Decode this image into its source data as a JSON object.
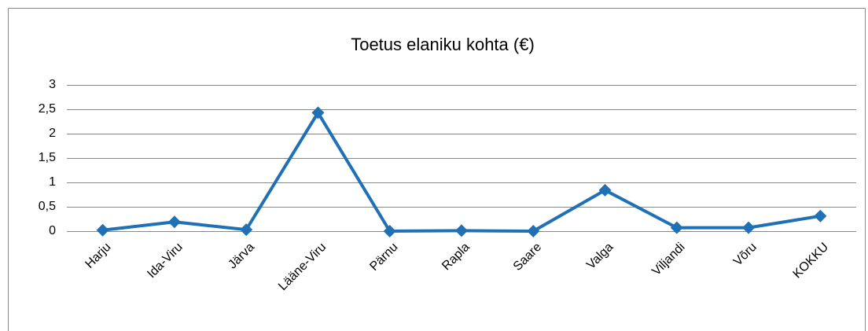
{
  "chart_data": {
    "type": "line",
    "title": "Toetus elaniku kohta (€)",
    "categories": [
      "Harju",
      "Ida-Viru",
      "Järva",
      "Lääne-Viru",
      "Pärnu",
      "Rapla",
      "Saare",
      "Valga",
      "Viljandi",
      "Võru",
      "KOKKU"
    ],
    "series": [
      {
        "name": "Toetus elaniku kohta (€)",
        "color": "#1f70b5",
        "values": [
          0.02,
          0.19,
          0.03,
          2.43,
          0,
          0.01,
          0,
          0.84,
          0.07,
          0.07,
          0.31
        ]
      }
    ],
    "ylim": [
      0,
      3
    ],
    "yticks": [
      0,
      {
        "value": 0.5,
        "label": "0,5"
      },
      1,
      {
        "value": 1.5,
        "label": "1,5"
      },
      2,
      {
        "value": 2.5,
        "label": "2,5"
      },
      3
    ],
    "grid": true
  }
}
